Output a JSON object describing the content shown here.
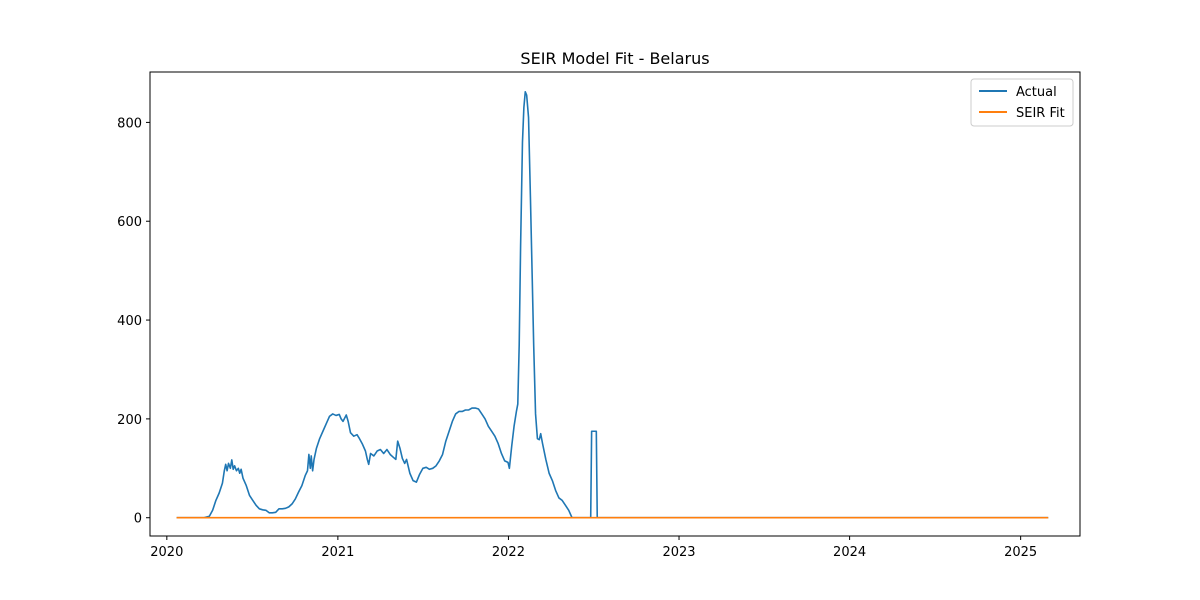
{
  "chart_data": {
    "type": "line",
    "title": "SEIR Model Fit - Belarus",
    "xlabel": "",
    "ylabel": "",
    "x_axis_type": "date",
    "xlim": [
      "2019-11-26",
      "2025-05-08"
    ],
    "ylim": [
      -37,
      902
    ],
    "x_ticks": [
      "2020-01-01",
      "2021-01-01",
      "2022-01-01",
      "2023-01-01",
      "2024-01-01",
      "2025-01-01"
    ],
    "x_tick_labels": [
      "2020",
      "2021",
      "2022",
      "2023",
      "2024",
      "2025"
    ],
    "y_ticks": [
      0,
      200,
      400,
      600,
      800
    ],
    "y_tick_labels": [
      "0",
      "200",
      "400",
      "600",
      "800"
    ],
    "grid": false,
    "legend_position": "top-right",
    "colors": {
      "actual": "#1f77b4",
      "seir": "#ff7f0e",
      "axis": "#000000"
    },
    "series": [
      {
        "name": "Actual",
        "points": [
          [
            "2020-01-22",
            0
          ],
          [
            "2020-03-20",
            0
          ],
          [
            "2020-04-01",
            3
          ],
          [
            "2020-04-08",
            15
          ],
          [
            "2020-04-15",
            35
          ],
          [
            "2020-04-22",
            50
          ],
          [
            "2020-04-29",
            70
          ],
          [
            "2020-05-03",
            95
          ],
          [
            "2020-05-06",
            108
          ],
          [
            "2020-05-09",
            95
          ],
          [
            "2020-05-12",
            110
          ],
          [
            "2020-05-16",
            100
          ],
          [
            "2020-05-19",
            117
          ],
          [
            "2020-05-22",
            98
          ],
          [
            "2020-05-25",
            105
          ],
          [
            "2020-05-29",
            95
          ],
          [
            "2020-06-02",
            100
          ],
          [
            "2020-06-05",
            90
          ],
          [
            "2020-06-08",
            98
          ],
          [
            "2020-06-12",
            80
          ],
          [
            "2020-06-19",
            65
          ],
          [
            "2020-06-26",
            45
          ],
          [
            "2020-07-03",
            35
          ],
          [
            "2020-07-10",
            25
          ],
          [
            "2020-07-17",
            18
          ],
          [
            "2020-07-24",
            16
          ],
          [
            "2020-07-31",
            15
          ],
          [
            "2020-08-07",
            10
          ],
          [
            "2020-08-14",
            10
          ],
          [
            "2020-08-21",
            11
          ],
          [
            "2020-08-28",
            18
          ],
          [
            "2020-09-04",
            18
          ],
          [
            "2020-09-11",
            19
          ],
          [
            "2020-09-18",
            22
          ],
          [
            "2020-09-25",
            28
          ],
          [
            "2020-10-02",
            38
          ],
          [
            "2020-10-09",
            52
          ],
          [
            "2020-10-16",
            65
          ],
          [
            "2020-10-23",
            85
          ],
          [
            "2020-10-28",
            95
          ],
          [
            "2020-10-31",
            128
          ],
          [
            "2020-11-03",
            100
          ],
          [
            "2020-11-05",
            125
          ],
          [
            "2020-11-08",
            95
          ],
          [
            "2020-11-11",
            118
          ],
          [
            "2020-11-16",
            140
          ],
          [
            "2020-11-23",
            160
          ],
          [
            "2020-11-30",
            175
          ],
          [
            "2020-12-07",
            190
          ],
          [
            "2020-12-14",
            205
          ],
          [
            "2020-12-21",
            210
          ],
          [
            "2020-12-28",
            207
          ],
          [
            "2021-01-04",
            209
          ],
          [
            "2021-01-08",
            200
          ],
          [
            "2021-01-12",
            195
          ],
          [
            "2021-01-19",
            208
          ],
          [
            "2021-01-23",
            195
          ],
          [
            "2021-01-28",
            172
          ],
          [
            "2021-02-04",
            165
          ],
          [
            "2021-02-11",
            168
          ],
          [
            "2021-02-15",
            162
          ],
          [
            "2021-02-22",
            150
          ],
          [
            "2021-03-01",
            135
          ],
          [
            "2021-03-05",
            118
          ],
          [
            "2021-03-08",
            108
          ],
          [
            "2021-03-12",
            130
          ],
          [
            "2021-03-19",
            125
          ],
          [
            "2021-03-26",
            135
          ],
          [
            "2021-04-02",
            138
          ],
          [
            "2021-04-09",
            130
          ],
          [
            "2021-04-16",
            138
          ],
          [
            "2021-04-23",
            128
          ],
          [
            "2021-04-30",
            122
          ],
          [
            "2021-05-05",
            118
          ],
          [
            "2021-05-09",
            155
          ],
          [
            "2021-05-14",
            140
          ],
          [
            "2021-05-19",
            120
          ],
          [
            "2021-05-24",
            110
          ],
          [
            "2021-05-28",
            118
          ],
          [
            "2021-06-04",
            90
          ],
          [
            "2021-06-11",
            75
          ],
          [
            "2021-06-18",
            72
          ],
          [
            "2021-06-25",
            88
          ],
          [
            "2021-07-02",
            100
          ],
          [
            "2021-07-09",
            102
          ],
          [
            "2021-07-16",
            98
          ],
          [
            "2021-07-23",
            100
          ],
          [
            "2021-07-30",
            105
          ],
          [
            "2021-08-06",
            115
          ],
          [
            "2021-08-13",
            128
          ],
          [
            "2021-08-20",
            155
          ],
          [
            "2021-08-27",
            175
          ],
          [
            "2021-09-03",
            195
          ],
          [
            "2021-09-10",
            210
          ],
          [
            "2021-09-17",
            215
          ],
          [
            "2021-09-24",
            215
          ],
          [
            "2021-10-01",
            218
          ],
          [
            "2021-10-08",
            218
          ],
          [
            "2021-10-15",
            222
          ],
          [
            "2021-10-22",
            222
          ],
          [
            "2021-10-29",
            220
          ],
          [
            "2021-11-05",
            210
          ],
          [
            "2021-11-12",
            200
          ],
          [
            "2021-11-19",
            185
          ],
          [
            "2021-11-26",
            175
          ],
          [
            "2021-12-03",
            165
          ],
          [
            "2021-12-10",
            150
          ],
          [
            "2021-12-17",
            130
          ],
          [
            "2021-12-24",
            115
          ],
          [
            "2021-12-31",
            112
          ],
          [
            "2022-01-03",
            100
          ],
          [
            "2022-01-08",
            145
          ],
          [
            "2022-01-13",
            185
          ],
          [
            "2022-01-18",
            215
          ],
          [
            "2022-01-21",
            230
          ],
          [
            "2022-01-24",
            350
          ],
          [
            "2022-01-27",
            550
          ],
          [
            "2022-01-31",
            760
          ],
          [
            "2022-02-03",
            830
          ],
          [
            "2022-02-06",
            862
          ],
          [
            "2022-02-09",
            855
          ],
          [
            "2022-02-13",
            810
          ],
          [
            "2022-02-17",
            650
          ],
          [
            "2022-02-21",
            480
          ],
          [
            "2022-02-24",
            350
          ],
          [
            "2022-02-28",
            210
          ],
          [
            "2022-03-04",
            160
          ],
          [
            "2022-03-08",
            158
          ],
          [
            "2022-03-11",
            170
          ],
          [
            "2022-03-15",
            150
          ],
          [
            "2022-03-22",
            118
          ],
          [
            "2022-03-29",
            90
          ],
          [
            "2022-04-05",
            75
          ],
          [
            "2022-04-12",
            55
          ],
          [
            "2022-04-19",
            40
          ],
          [
            "2022-04-26",
            35
          ],
          [
            "2022-05-03",
            25
          ],
          [
            "2022-05-10",
            15
          ],
          [
            "2022-05-17",
            0
          ],
          [
            "2022-06-26",
            0
          ],
          [
            "2022-06-28",
            175
          ],
          [
            "2022-07-08",
            175
          ],
          [
            "2022-07-10",
            0
          ],
          [
            "2025-03-01",
            0
          ]
        ]
      },
      {
        "name": "SEIR Fit",
        "points": [
          [
            "2020-01-22",
            0
          ],
          [
            "2025-03-01",
            0
          ]
        ]
      }
    ]
  }
}
